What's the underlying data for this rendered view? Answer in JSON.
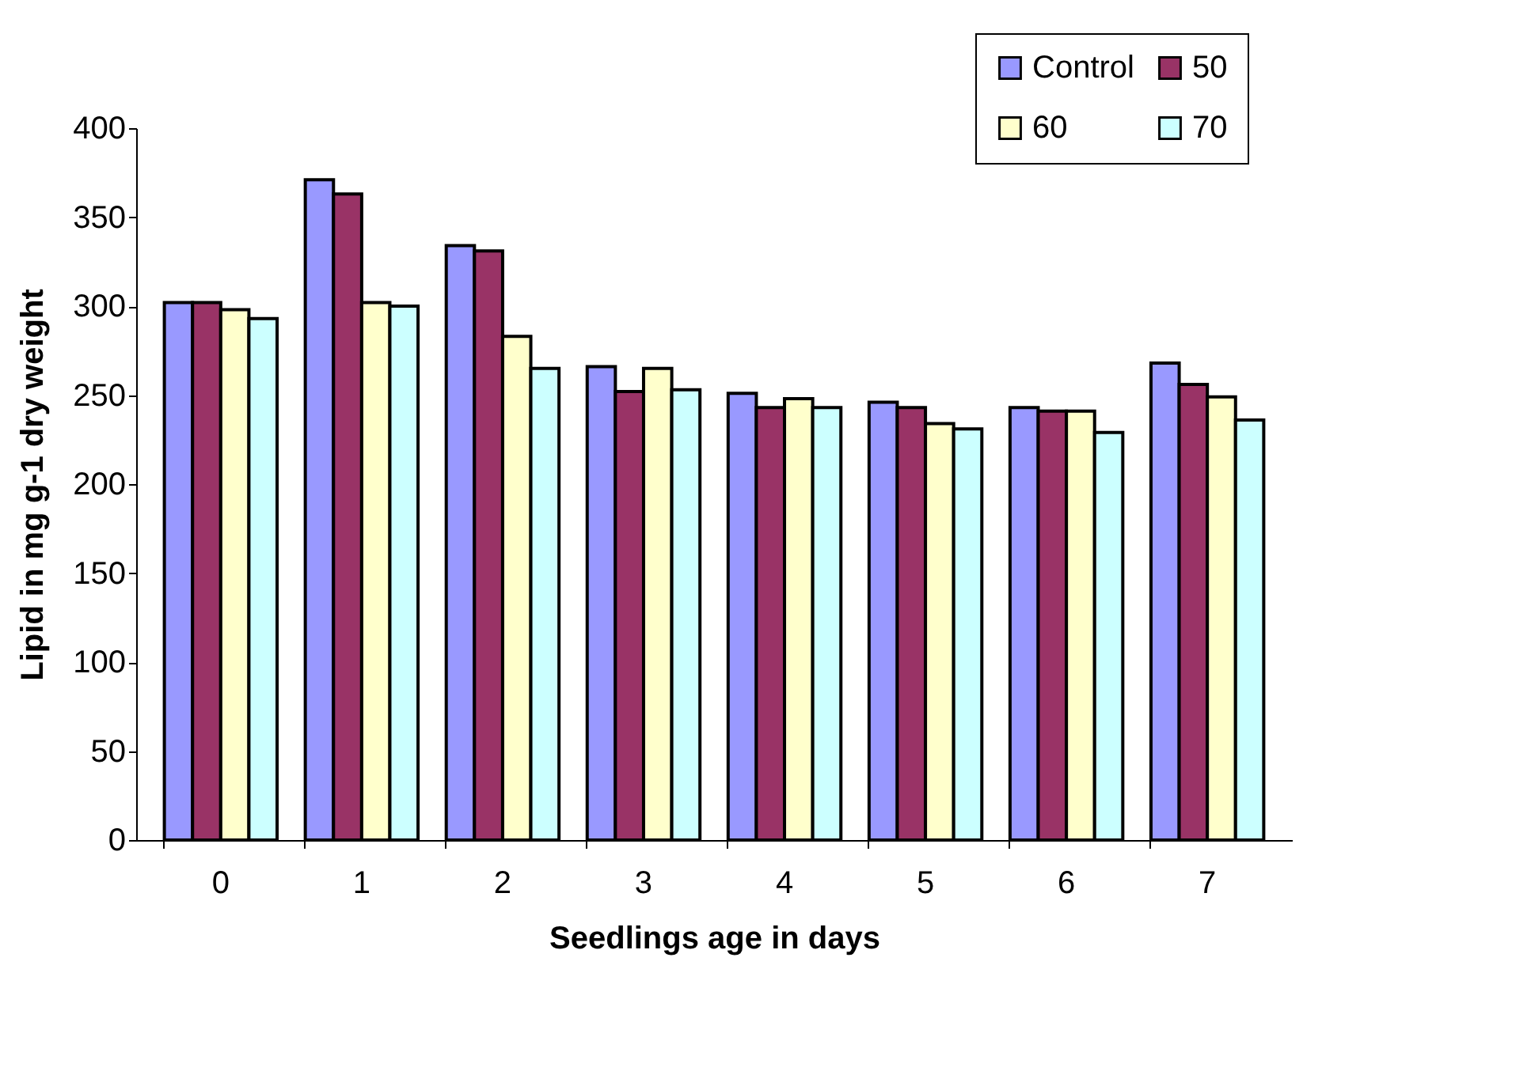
{
  "chart_data": {
    "type": "bar",
    "xlabel": "Seedlings age in days",
    "ylabel": "Lipid in mg g-1 dry weight",
    "categories": [
      "0",
      "1",
      "2",
      "3",
      "4",
      "5",
      "6",
      "7"
    ],
    "series": [
      {
        "name": "Control",
        "color": "#9999ff",
        "values": [
          302,
          371,
          334,
          266,
          251,
          246,
          243,
          268
        ]
      },
      {
        "name": "50",
        "color": "#993366",
        "values": [
          302,
          363,
          331,
          252,
          243,
          243,
          241,
          256
        ]
      },
      {
        "name": "60",
        "color": "#ffffcc",
        "values": [
          298,
          302,
          283,
          265,
          248,
          234,
          241,
          249
        ]
      },
      {
        "name": "70",
        "color": "#ccffff",
        "values": [
          293,
          300,
          265,
          253,
          243,
          231,
          229,
          236
        ]
      }
    ],
    "ylim": [
      0,
      400
    ],
    "yticks": [
      0,
      50,
      100,
      150,
      200,
      250,
      300,
      350,
      400
    ],
    "grid": false,
    "legend": "top right"
  }
}
